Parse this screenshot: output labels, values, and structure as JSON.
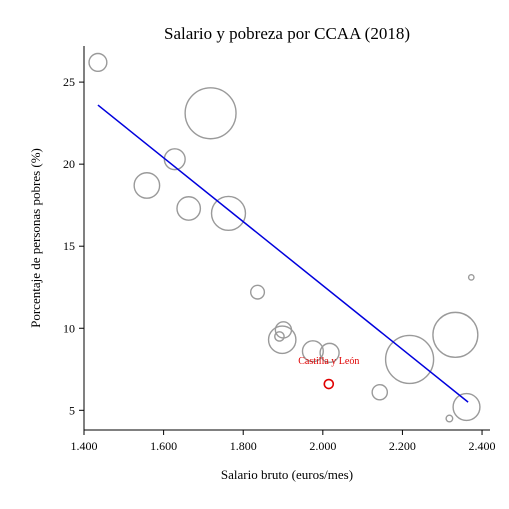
{
  "chart_data": {
    "type": "scatter",
    "title": "Salario y pobreza por CCAA (2018)",
    "xlabel": "Salario bruto (euros/mes)",
    "ylabel": "Porcentaje de personas pobres (%)",
    "xlim": [
      1400,
      2420
    ],
    "ylim": [
      3.8,
      27.2
    ],
    "x_ticks": [
      1400,
      1600,
      1800,
      2000,
      2200,
      2400
    ],
    "x_tick_labels": [
      "1.400",
      "1.600",
      "1.800",
      "2.000",
      "2.200",
      "2.400"
    ],
    "y_ticks": [
      5,
      10,
      15,
      20,
      25
    ],
    "y_tick_labels": [
      "5",
      "10",
      "15",
      "20",
      "25"
    ],
    "grid": false,
    "colors": {
      "bubble": "#9a9a9a",
      "highlight": "#e00000",
      "trend": "#0000dd"
    },
    "points": [
      {
        "x": 1435,
        "y": 26.2,
        "size": 2.2
      },
      {
        "x": 1718,
        "y": 23.1,
        "size": 18.0
      },
      {
        "x": 1628,
        "y": 20.3,
        "size": 3.0
      },
      {
        "x": 1558,
        "y": 18.7,
        "size": 4.5
      },
      {
        "x": 1663,
        "y": 17.3,
        "size": 3.8
      },
      {
        "x": 1763,
        "y": 17.0,
        "size": 8.0
      },
      {
        "x": 1836,
        "y": 12.2,
        "size": 1.3
      },
      {
        "x": 2373,
        "y": 13.1,
        "size": 0.2
      },
      {
        "x": 1901,
        "y": 9.9,
        "size": 1.8
      },
      {
        "x": 1891,
        "y": 9.5,
        "size": 0.6
      },
      {
        "x": 1898,
        "y": 9.3,
        "size": 5.2
      },
      {
        "x": 1975,
        "y": 8.6,
        "size": 3.0
      },
      {
        "x": 2017,
        "y": 8.5,
        "size": 2.5
      },
      {
        "x": 2218,
        "y": 8.1,
        "size": 16.0
      },
      {
        "x": 2333,
        "y": 9.6,
        "size": 14.0
      },
      {
        "x": 2143,
        "y": 6.1,
        "size": 1.6
      },
      {
        "x": 2318,
        "y": 4.5,
        "size": 0.3
      },
      {
        "x": 2361,
        "y": 5.2,
        "size": 5.0
      }
    ],
    "highlight": {
      "label": "Castilla y León",
      "x": 2015,
      "y": 6.6
    },
    "trend_line": {
      "x": [
        1435,
        2365
      ],
      "y": [
        23.6,
        5.5
      ]
    }
  }
}
